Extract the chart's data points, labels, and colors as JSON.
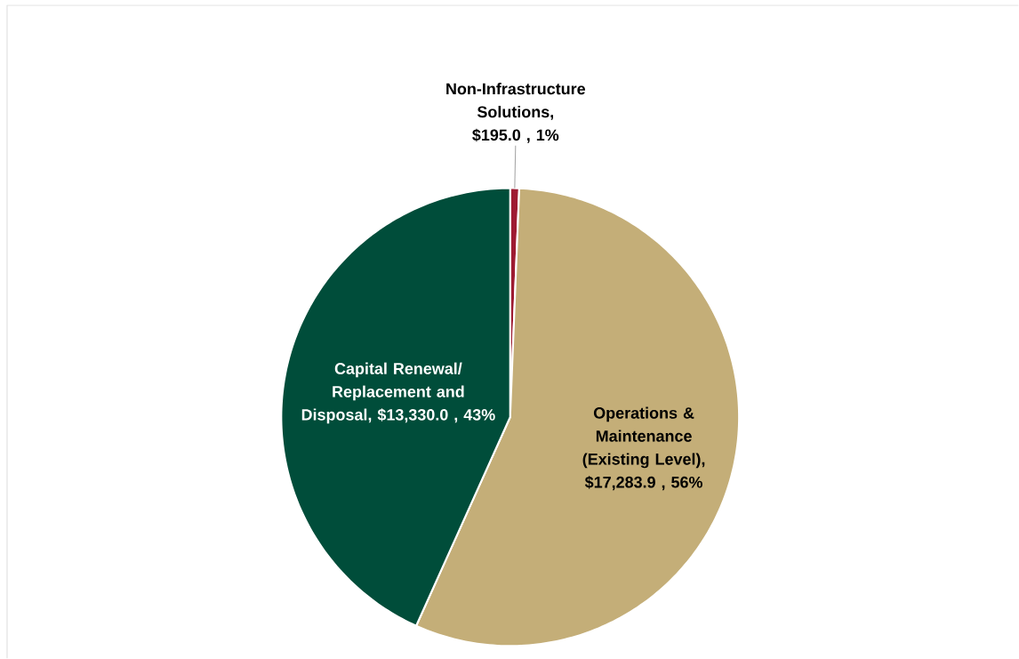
{
  "chart_data": {
    "type": "pie",
    "categories": [
      "Non-Infrastructure Solutions",
      "Operations & Maintenance (Existing Level)",
      "Capital Renewal/ Replacement and Disposal"
    ],
    "values": [
      195.0,
      17283.9,
      13330.0
    ],
    "value_labels": [
      ", $195.0 , 1%",
      ", $17,283.9 , 56%",
      ", $13,330.0 , 43%"
    ],
    "colors": [
      "#9e1b32",
      "#c4ae78",
      "#004d3a"
    ]
  }
}
